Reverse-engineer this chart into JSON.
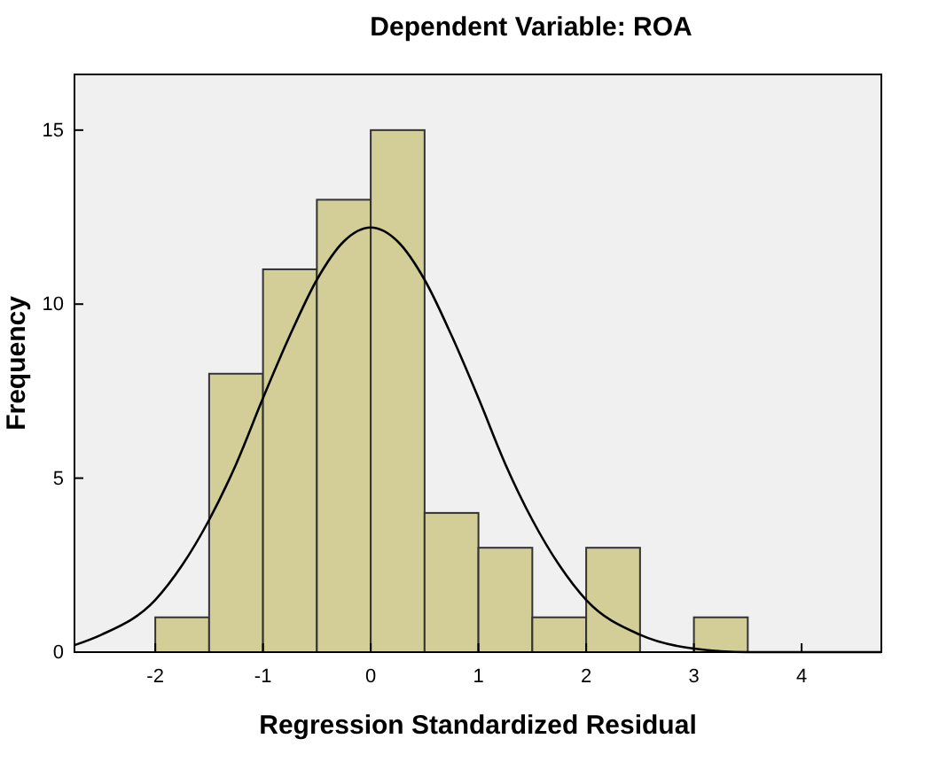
{
  "chart_data": {
    "type": "histogram",
    "title": "Dependent Variable: ROA",
    "xlabel": "Regression Standardized Residual",
    "ylabel": "Frequency",
    "bins": [
      -2,
      -1.5,
      -1,
      -0.5,
      0,
      0.5,
      1,
      1.5,
      2,
      2.5,
      3,
      3.5
    ],
    "values": [
      1,
      8,
      11,
      13,
      15,
      4,
      3,
      1,
      3,
      0,
      1
    ],
    "color": "#d3ce97",
    "series": [
      {
        "type": "line",
        "color": "#000000",
        "x": [
          -2.75,
          -2.5,
          -2,
          -1.75,
          -1.5,
          -1.25,
          -1,
          -0.75,
          -0.5,
          -0.25,
          0,
          0.25,
          0.5,
          0.75,
          1,
          1.25,
          1.5,
          1.75,
          2,
          2.5,
          3,
          3.5,
          4,
          4.74
        ],
        "values": [
          0.2,
          0.5,
          1.5,
          2.5,
          3.8,
          5.4,
          7.3,
          9.1,
          10.7,
          11.8,
          12.2,
          11.8,
          10.7,
          9.1,
          7.3,
          5.4,
          3.8,
          2.5,
          1.5,
          0.5,
          0.1,
          0,
          0,
          0
        ]
      }
    ],
    "xlim": [
      -2.75,
      4.74
    ],
    "ylim": [
      0,
      16.6
    ],
    "xticks": [
      -2,
      -1,
      0,
      1,
      2,
      3,
      4
    ],
    "yticks": [
      0,
      5,
      10,
      15
    ],
    "grid": false
  }
}
